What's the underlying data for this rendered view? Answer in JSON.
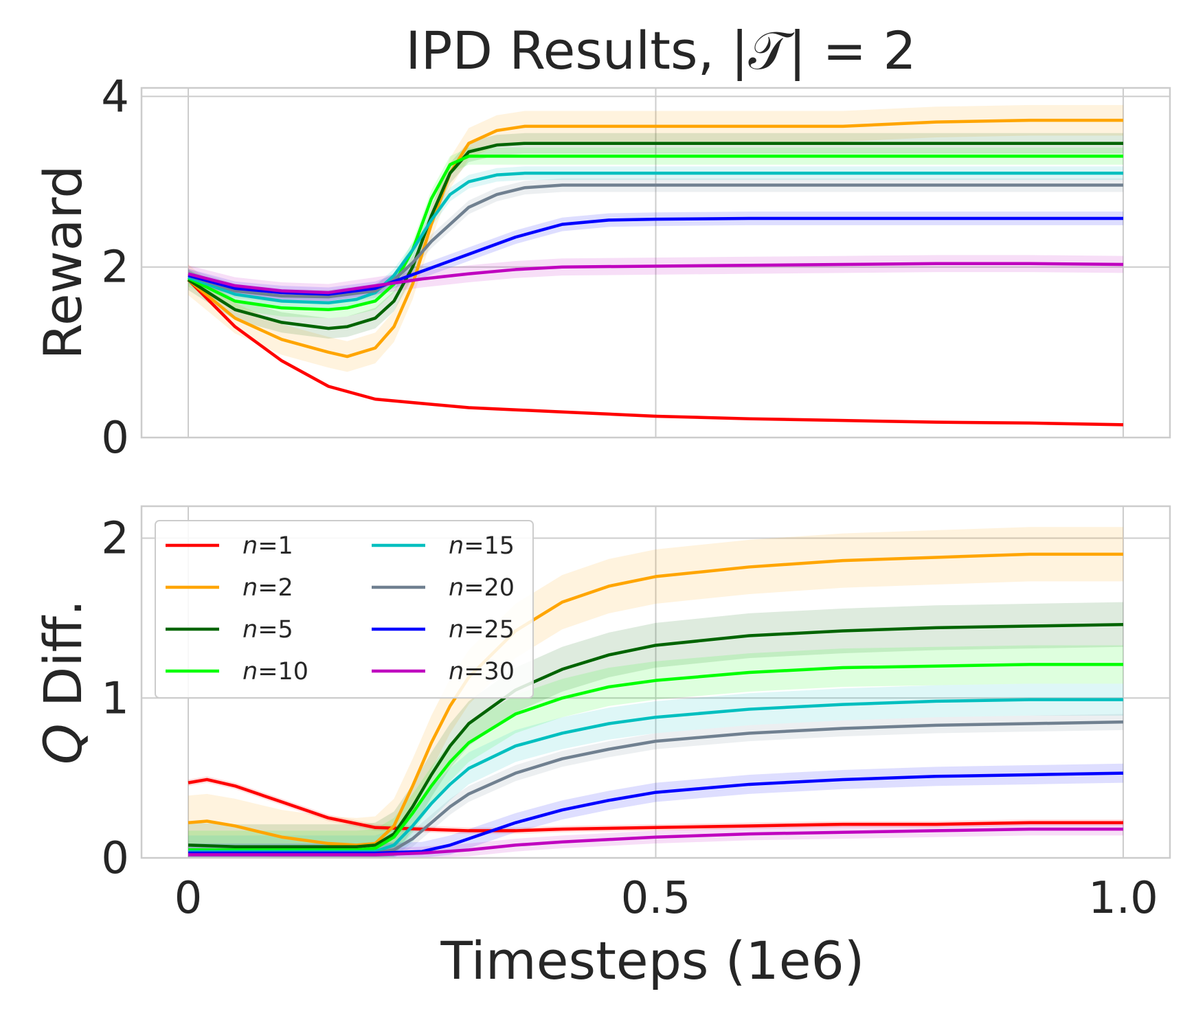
{
  "figure_title": "IPD Results, |𝒯| = 2",
  "xlabel": "Timesteps (1e6)",
  "chart_data": [
    {
      "type": "line",
      "id": "reward",
      "title": "IPD Results, |𝒯| = 2",
      "xlabel": "",
      "ylabel": "Reward",
      "xlim": [
        -0.05,
        1.05
      ],
      "ylim": [
        0,
        4.1
      ],
      "xticks": [
        0,
        0.5,
        1.0
      ],
      "xtick_labels": [
        "",
        "",
        ""
      ],
      "yticks": [
        0,
        2,
        4
      ],
      "ytick_labels": [
        "0",
        "2",
        "4"
      ],
      "grid": true,
      "series": [
        {
          "name": "n=1",
          "color": "#ff0000",
          "band": 0.02,
          "x": [
            0,
            0.05,
            0.1,
            0.15,
            0.2,
            0.25,
            0.3,
            0.4,
            0.5,
            0.6,
            0.7,
            0.8,
            0.9,
            1.0
          ],
          "y": [
            1.85,
            1.3,
            0.9,
            0.6,
            0.45,
            0.4,
            0.35,
            0.3,
            0.25,
            0.22,
            0.2,
            0.18,
            0.17,
            0.15
          ]
        },
        {
          "name": "n=2",
          "color": "#ffa500",
          "band": 0.18,
          "x": [
            0,
            0.05,
            0.1,
            0.15,
            0.17,
            0.2,
            0.22,
            0.24,
            0.26,
            0.28,
            0.3,
            0.33,
            0.36,
            0.4,
            0.5,
            0.6,
            0.7,
            0.8,
            0.9,
            1.0
          ],
          "y": [
            1.85,
            1.4,
            1.15,
            1.0,
            0.95,
            1.05,
            1.3,
            1.8,
            2.5,
            3.1,
            3.45,
            3.6,
            3.65,
            3.65,
            3.65,
            3.65,
            3.65,
            3.7,
            3.72,
            3.72
          ]
        },
        {
          "name": "n=5",
          "color": "#006400",
          "band": 0.12,
          "x": [
            0,
            0.05,
            0.1,
            0.15,
            0.17,
            0.2,
            0.22,
            0.24,
            0.26,
            0.28,
            0.3,
            0.33,
            0.36,
            0.4,
            0.5,
            0.6,
            0.7,
            0.8,
            0.9,
            1.0
          ],
          "y": [
            1.85,
            1.5,
            1.35,
            1.28,
            1.3,
            1.4,
            1.6,
            2.0,
            2.6,
            3.1,
            3.35,
            3.43,
            3.45,
            3.45,
            3.45,
            3.45,
            3.45,
            3.45,
            3.45,
            3.45
          ]
        },
        {
          "name": "n=10",
          "color": "#00ff00",
          "band": 0.1,
          "x": [
            0,
            0.05,
            0.1,
            0.15,
            0.17,
            0.2,
            0.22,
            0.24,
            0.26,
            0.28,
            0.3,
            0.33,
            0.36,
            0.4,
            0.5,
            0.6,
            0.7,
            0.8,
            0.9,
            1.0
          ],
          "y": [
            1.87,
            1.6,
            1.52,
            1.5,
            1.52,
            1.6,
            1.8,
            2.2,
            2.8,
            3.2,
            3.3,
            3.3,
            3.3,
            3.3,
            3.3,
            3.3,
            3.3,
            3.3,
            3.3,
            3.3
          ]
        },
        {
          "name": "n=15",
          "color": "#00bfbf",
          "band": 0.08,
          "x": [
            0,
            0.05,
            0.1,
            0.15,
            0.18,
            0.2,
            0.22,
            0.24,
            0.26,
            0.28,
            0.3,
            0.33,
            0.36,
            0.4,
            0.5,
            0.6,
            0.7,
            0.8,
            0.9,
            1.0
          ],
          "y": [
            1.88,
            1.68,
            1.6,
            1.58,
            1.62,
            1.7,
            1.9,
            2.2,
            2.55,
            2.85,
            3.0,
            3.08,
            3.1,
            3.1,
            3.1,
            3.1,
            3.1,
            3.1,
            3.1,
            3.1
          ]
        },
        {
          "name": "n=20",
          "color": "#708090",
          "band": 0.08,
          "x": [
            0,
            0.05,
            0.1,
            0.15,
            0.2,
            0.22,
            0.24,
            0.26,
            0.28,
            0.3,
            0.33,
            0.36,
            0.4,
            0.45,
            0.5,
            0.6,
            0.7,
            0.8,
            0.9,
            1.0
          ],
          "y": [
            1.9,
            1.72,
            1.66,
            1.65,
            1.72,
            1.85,
            2.05,
            2.3,
            2.5,
            2.7,
            2.85,
            2.93,
            2.96,
            2.96,
            2.96,
            2.96,
            2.96,
            2.96,
            2.96,
            2.96
          ]
        },
        {
          "name": "n=25",
          "color": "#0000ff",
          "band": 0.08,
          "x": [
            0,
            0.05,
            0.1,
            0.15,
            0.2,
            0.25,
            0.3,
            0.35,
            0.4,
            0.45,
            0.5,
            0.6,
            0.7,
            0.8,
            0.9,
            1.0
          ],
          "y": [
            1.9,
            1.75,
            1.7,
            1.68,
            1.75,
            1.95,
            2.15,
            2.35,
            2.5,
            2.55,
            2.56,
            2.57,
            2.57,
            2.57,
            2.57,
            2.57
          ]
        },
        {
          "name": "n=30",
          "color": "#bf00bf",
          "band": 0.1,
          "x": [
            0,
            0.05,
            0.1,
            0.15,
            0.2,
            0.25,
            0.3,
            0.35,
            0.4,
            0.5,
            0.6,
            0.7,
            0.8,
            0.9,
            1.0
          ],
          "y": [
            1.92,
            1.78,
            1.72,
            1.7,
            1.78,
            1.86,
            1.92,
            1.97,
            2.0,
            2.01,
            2.02,
            2.03,
            2.04,
            2.04,
            2.03
          ]
        }
      ]
    },
    {
      "type": "line",
      "id": "qdiff",
      "title": "",
      "xlabel": "Timesteps (1e6)",
      "ylabel_italic": "Q",
      "ylabel_rest": " Diff.",
      "xlim": [
        -0.05,
        1.05
      ],
      "ylim": [
        0,
        2.2
      ],
      "xticks": [
        0,
        0.5,
        1.0
      ],
      "xtick_labels": [
        "0",
        "0.5",
        "1.0"
      ],
      "yticks": [
        0,
        1,
        2
      ],
      "ytick_labels": [
        "0",
        "1",
        "2"
      ],
      "grid": true,
      "legend": {
        "location": "upper-left",
        "columns": 2
      },
      "series": [
        {
          "name": "n=1",
          "color": "#ff0000",
          "band": 0.02,
          "x": [
            0,
            0.02,
            0.05,
            0.1,
            0.15,
            0.2,
            0.25,
            0.3,
            0.35,
            0.4,
            0.5,
            0.6,
            0.7,
            0.8,
            0.9,
            1.0
          ],
          "y": [
            0.47,
            0.49,
            0.45,
            0.35,
            0.25,
            0.19,
            0.18,
            0.17,
            0.17,
            0.18,
            0.19,
            0.2,
            0.21,
            0.21,
            0.22,
            0.22
          ]
        },
        {
          "name": "n=2",
          "color": "#ffa500",
          "band": 0.17,
          "x": [
            0,
            0.02,
            0.05,
            0.1,
            0.15,
            0.18,
            0.2,
            0.22,
            0.24,
            0.26,
            0.28,
            0.3,
            0.35,
            0.4,
            0.45,
            0.5,
            0.6,
            0.7,
            0.8,
            0.9,
            1.0
          ],
          "y": [
            0.22,
            0.23,
            0.2,
            0.13,
            0.09,
            0.08,
            0.09,
            0.2,
            0.45,
            0.72,
            0.95,
            1.13,
            1.42,
            1.6,
            1.7,
            1.76,
            1.82,
            1.86,
            1.88,
            1.9,
            1.9
          ]
        },
        {
          "name": "n=5",
          "color": "#006400",
          "band": 0.14,
          "x": [
            0,
            0.05,
            0.1,
            0.15,
            0.18,
            0.2,
            0.22,
            0.24,
            0.26,
            0.28,
            0.3,
            0.35,
            0.4,
            0.45,
            0.5,
            0.6,
            0.7,
            0.8,
            0.9,
            1.0
          ],
          "y": [
            0.08,
            0.07,
            0.07,
            0.07,
            0.07,
            0.08,
            0.15,
            0.32,
            0.52,
            0.7,
            0.84,
            1.05,
            1.18,
            1.27,
            1.33,
            1.39,
            1.42,
            1.44,
            1.45,
            1.46
          ]
        },
        {
          "name": "n=10",
          "color": "#00ff00",
          "band": 0.12,
          "x": [
            0,
            0.05,
            0.1,
            0.15,
            0.18,
            0.2,
            0.22,
            0.24,
            0.26,
            0.28,
            0.3,
            0.35,
            0.4,
            0.45,
            0.5,
            0.6,
            0.7,
            0.8,
            0.9,
            1.0
          ],
          "y": [
            0.05,
            0.05,
            0.05,
            0.05,
            0.05,
            0.06,
            0.13,
            0.28,
            0.45,
            0.6,
            0.72,
            0.9,
            1.0,
            1.07,
            1.11,
            1.16,
            1.19,
            1.2,
            1.21,
            1.21
          ]
        },
        {
          "name": "n=15",
          "color": "#00bfbf",
          "band": 0.1,
          "x": [
            0,
            0.05,
            0.1,
            0.15,
            0.2,
            0.22,
            0.24,
            0.26,
            0.28,
            0.3,
            0.35,
            0.4,
            0.45,
            0.5,
            0.6,
            0.7,
            0.8,
            0.9,
            1.0
          ],
          "y": [
            0.04,
            0.04,
            0.04,
            0.04,
            0.04,
            0.08,
            0.2,
            0.34,
            0.46,
            0.56,
            0.7,
            0.78,
            0.84,
            0.88,
            0.93,
            0.96,
            0.98,
            0.99,
            0.99
          ]
        },
        {
          "name": "n=20",
          "color": "#708090",
          "band": 0.05,
          "x": [
            0,
            0.05,
            0.1,
            0.15,
            0.2,
            0.22,
            0.24,
            0.26,
            0.28,
            0.3,
            0.35,
            0.4,
            0.45,
            0.5,
            0.6,
            0.7,
            0.8,
            0.9,
            1.0
          ],
          "y": [
            0.03,
            0.03,
            0.03,
            0.03,
            0.03,
            0.05,
            0.12,
            0.22,
            0.32,
            0.4,
            0.53,
            0.62,
            0.68,
            0.73,
            0.78,
            0.81,
            0.83,
            0.84,
            0.85
          ]
        },
        {
          "name": "n=25",
          "color": "#0000ff",
          "band": 0.06,
          "x": [
            0,
            0.05,
            0.1,
            0.15,
            0.2,
            0.25,
            0.28,
            0.3,
            0.35,
            0.4,
            0.45,
            0.5,
            0.6,
            0.7,
            0.8,
            0.9,
            1.0
          ],
          "y": [
            0.03,
            0.03,
            0.03,
            0.03,
            0.03,
            0.04,
            0.08,
            0.12,
            0.22,
            0.3,
            0.36,
            0.41,
            0.46,
            0.49,
            0.51,
            0.52,
            0.53
          ]
        },
        {
          "name": "n=30",
          "color": "#bf00bf",
          "band": 0.04,
          "x": [
            0,
            0.05,
            0.1,
            0.15,
            0.2,
            0.25,
            0.3,
            0.35,
            0.4,
            0.5,
            0.6,
            0.7,
            0.8,
            0.9,
            1.0
          ],
          "y": [
            0.02,
            0.02,
            0.02,
            0.02,
            0.02,
            0.03,
            0.05,
            0.08,
            0.1,
            0.13,
            0.15,
            0.16,
            0.17,
            0.18,
            0.18
          ]
        }
      ]
    }
  ],
  "legend_labels": [
    {
      "italic": "n",
      "rest": "=1"
    },
    {
      "italic": "n",
      "rest": "=2"
    },
    {
      "italic": "n",
      "rest": "=5"
    },
    {
      "italic": "n",
      "rest": "=10"
    },
    {
      "italic": "n",
      "rest": "=15"
    },
    {
      "italic": "n",
      "rest": "=20"
    },
    {
      "italic": "n",
      "rest": "=25"
    },
    {
      "italic": "n",
      "rest": "=30"
    }
  ]
}
